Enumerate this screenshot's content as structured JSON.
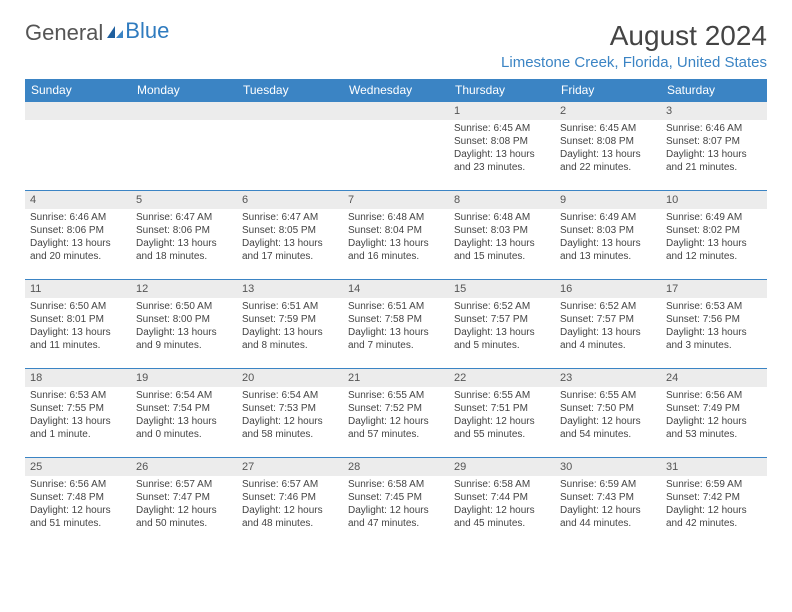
{
  "logo": {
    "part1": "General",
    "part2": "Blue"
  },
  "title": "August 2024",
  "location": "Limestone Creek, Florida, United States",
  "colors": {
    "header_bg": "#3b84c4",
    "header_text": "#ffffff",
    "daynum_bg": "#ececec",
    "border": "#3b84c4",
    "location_text": "#3b84c4"
  },
  "weekdays": [
    "Sunday",
    "Monday",
    "Tuesday",
    "Wednesday",
    "Thursday",
    "Friday",
    "Saturday"
  ],
  "weeks": [
    [
      null,
      null,
      null,
      null,
      {
        "n": "1",
        "sr": "Sunrise: 6:45 AM",
        "ss": "Sunset: 8:08 PM",
        "d1": "Daylight: 13 hours",
        "d2": "and 23 minutes."
      },
      {
        "n": "2",
        "sr": "Sunrise: 6:45 AM",
        "ss": "Sunset: 8:08 PM",
        "d1": "Daylight: 13 hours",
        "d2": "and 22 minutes."
      },
      {
        "n": "3",
        "sr": "Sunrise: 6:46 AM",
        "ss": "Sunset: 8:07 PM",
        "d1": "Daylight: 13 hours",
        "d2": "and 21 minutes."
      }
    ],
    [
      {
        "n": "4",
        "sr": "Sunrise: 6:46 AM",
        "ss": "Sunset: 8:06 PM",
        "d1": "Daylight: 13 hours",
        "d2": "and 20 minutes."
      },
      {
        "n": "5",
        "sr": "Sunrise: 6:47 AM",
        "ss": "Sunset: 8:06 PM",
        "d1": "Daylight: 13 hours",
        "d2": "and 18 minutes."
      },
      {
        "n": "6",
        "sr": "Sunrise: 6:47 AM",
        "ss": "Sunset: 8:05 PM",
        "d1": "Daylight: 13 hours",
        "d2": "and 17 minutes."
      },
      {
        "n": "7",
        "sr": "Sunrise: 6:48 AM",
        "ss": "Sunset: 8:04 PM",
        "d1": "Daylight: 13 hours",
        "d2": "and 16 minutes."
      },
      {
        "n": "8",
        "sr": "Sunrise: 6:48 AM",
        "ss": "Sunset: 8:03 PM",
        "d1": "Daylight: 13 hours",
        "d2": "and 15 minutes."
      },
      {
        "n": "9",
        "sr": "Sunrise: 6:49 AM",
        "ss": "Sunset: 8:03 PM",
        "d1": "Daylight: 13 hours",
        "d2": "and 13 minutes."
      },
      {
        "n": "10",
        "sr": "Sunrise: 6:49 AM",
        "ss": "Sunset: 8:02 PM",
        "d1": "Daylight: 13 hours",
        "d2": "and 12 minutes."
      }
    ],
    [
      {
        "n": "11",
        "sr": "Sunrise: 6:50 AM",
        "ss": "Sunset: 8:01 PM",
        "d1": "Daylight: 13 hours",
        "d2": "and 11 minutes."
      },
      {
        "n": "12",
        "sr": "Sunrise: 6:50 AM",
        "ss": "Sunset: 8:00 PM",
        "d1": "Daylight: 13 hours",
        "d2": "and 9 minutes."
      },
      {
        "n": "13",
        "sr": "Sunrise: 6:51 AM",
        "ss": "Sunset: 7:59 PM",
        "d1": "Daylight: 13 hours",
        "d2": "and 8 minutes."
      },
      {
        "n": "14",
        "sr": "Sunrise: 6:51 AM",
        "ss": "Sunset: 7:58 PM",
        "d1": "Daylight: 13 hours",
        "d2": "and 7 minutes."
      },
      {
        "n": "15",
        "sr": "Sunrise: 6:52 AM",
        "ss": "Sunset: 7:57 PM",
        "d1": "Daylight: 13 hours",
        "d2": "and 5 minutes."
      },
      {
        "n": "16",
        "sr": "Sunrise: 6:52 AM",
        "ss": "Sunset: 7:57 PM",
        "d1": "Daylight: 13 hours",
        "d2": "and 4 minutes."
      },
      {
        "n": "17",
        "sr": "Sunrise: 6:53 AM",
        "ss": "Sunset: 7:56 PM",
        "d1": "Daylight: 13 hours",
        "d2": "and 3 minutes."
      }
    ],
    [
      {
        "n": "18",
        "sr": "Sunrise: 6:53 AM",
        "ss": "Sunset: 7:55 PM",
        "d1": "Daylight: 13 hours",
        "d2": "and 1 minute."
      },
      {
        "n": "19",
        "sr": "Sunrise: 6:54 AM",
        "ss": "Sunset: 7:54 PM",
        "d1": "Daylight: 13 hours",
        "d2": "and 0 minutes."
      },
      {
        "n": "20",
        "sr": "Sunrise: 6:54 AM",
        "ss": "Sunset: 7:53 PM",
        "d1": "Daylight: 12 hours",
        "d2": "and 58 minutes."
      },
      {
        "n": "21",
        "sr": "Sunrise: 6:55 AM",
        "ss": "Sunset: 7:52 PM",
        "d1": "Daylight: 12 hours",
        "d2": "and 57 minutes."
      },
      {
        "n": "22",
        "sr": "Sunrise: 6:55 AM",
        "ss": "Sunset: 7:51 PM",
        "d1": "Daylight: 12 hours",
        "d2": "and 55 minutes."
      },
      {
        "n": "23",
        "sr": "Sunrise: 6:55 AM",
        "ss": "Sunset: 7:50 PM",
        "d1": "Daylight: 12 hours",
        "d2": "and 54 minutes."
      },
      {
        "n": "24",
        "sr": "Sunrise: 6:56 AM",
        "ss": "Sunset: 7:49 PM",
        "d1": "Daylight: 12 hours",
        "d2": "and 53 minutes."
      }
    ],
    [
      {
        "n": "25",
        "sr": "Sunrise: 6:56 AM",
        "ss": "Sunset: 7:48 PM",
        "d1": "Daylight: 12 hours",
        "d2": "and 51 minutes."
      },
      {
        "n": "26",
        "sr": "Sunrise: 6:57 AM",
        "ss": "Sunset: 7:47 PM",
        "d1": "Daylight: 12 hours",
        "d2": "and 50 minutes."
      },
      {
        "n": "27",
        "sr": "Sunrise: 6:57 AM",
        "ss": "Sunset: 7:46 PM",
        "d1": "Daylight: 12 hours",
        "d2": "and 48 minutes."
      },
      {
        "n": "28",
        "sr": "Sunrise: 6:58 AM",
        "ss": "Sunset: 7:45 PM",
        "d1": "Daylight: 12 hours",
        "d2": "and 47 minutes."
      },
      {
        "n": "29",
        "sr": "Sunrise: 6:58 AM",
        "ss": "Sunset: 7:44 PM",
        "d1": "Daylight: 12 hours",
        "d2": "and 45 minutes."
      },
      {
        "n": "30",
        "sr": "Sunrise: 6:59 AM",
        "ss": "Sunset: 7:43 PM",
        "d1": "Daylight: 12 hours",
        "d2": "and 44 minutes."
      },
      {
        "n": "31",
        "sr": "Sunrise: 6:59 AM",
        "ss": "Sunset: 7:42 PM",
        "d1": "Daylight: 12 hours",
        "d2": "and 42 minutes."
      }
    ]
  ]
}
